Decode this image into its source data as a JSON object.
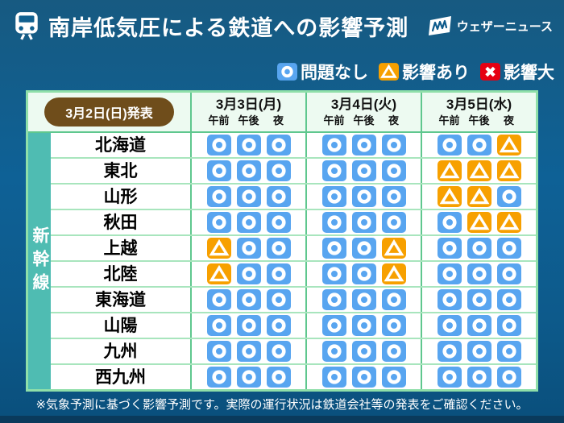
{
  "header": {
    "title": "南岸低気圧による鉄道への影響予測",
    "brand": "ウェザーニュース"
  },
  "legend": {
    "items": [
      {
        "type": "ok",
        "label": "問題なし"
      },
      {
        "type": "warn",
        "label": "影響あり"
      },
      {
        "type": "x",
        "label": "影響大"
      }
    ]
  },
  "colors": {
    "ok": "#58a5f0",
    "warn": "#f7a000",
    "x": "#e60012",
    "strip": "#4fbcb2",
    "pill": "#6f4d1b",
    "table_border": "#8fdfa9"
  },
  "table": {
    "announced": "3月2日(日)発表",
    "category_label": "新幹線",
    "columns": [
      {
        "date": "3月3日(月)",
        "periods": [
          "午前",
          "午後",
          "夜"
        ]
      },
      {
        "date": "3月4日(火)",
        "periods": [
          "午前",
          "午後",
          "夜"
        ]
      },
      {
        "date": "3月5日(水)",
        "periods": [
          "午前",
          "午後",
          "夜"
        ]
      }
    ]
  },
  "footer": {
    "note": "※気象予測に基づく影響予測です。実際の運行状況は鉄道会社等の発表をご確認ください。"
  },
  "chart_data": {
    "type": "table",
    "title": "南岸低気圧による鉄道への影響予測",
    "issued": "3月2日(日)発表",
    "legend": {
      "ok": "問題なし",
      "warn": "影響あり",
      "x": "影響大"
    },
    "columns": [
      "3月3日(月) 午前",
      "3月3日(月) 午後",
      "3月3日(月) 夜",
      "3月4日(火) 午前",
      "3月4日(火) 午後",
      "3月4日(火) 夜",
      "3月5日(水) 午前",
      "3月5日(水) 午後",
      "3月5日(水) 夜"
    ],
    "rows": [
      {
        "line": "北海道",
        "values": [
          "ok",
          "ok",
          "ok",
          "ok",
          "ok",
          "ok",
          "ok",
          "ok",
          "warn"
        ]
      },
      {
        "line": "東北",
        "values": [
          "ok",
          "ok",
          "ok",
          "ok",
          "ok",
          "ok",
          "warn",
          "warn",
          "warn"
        ]
      },
      {
        "line": "山形",
        "values": [
          "ok",
          "ok",
          "ok",
          "ok",
          "ok",
          "ok",
          "warn",
          "warn",
          "ok"
        ]
      },
      {
        "line": "秋田",
        "values": [
          "ok",
          "ok",
          "ok",
          "ok",
          "ok",
          "ok",
          "ok",
          "warn",
          "warn"
        ]
      },
      {
        "line": "上越",
        "values": [
          "warn",
          "ok",
          "ok",
          "ok",
          "ok",
          "warn",
          "ok",
          "ok",
          "ok"
        ]
      },
      {
        "line": "北陸",
        "values": [
          "warn",
          "ok",
          "ok",
          "ok",
          "ok",
          "warn",
          "ok",
          "ok",
          "ok"
        ]
      },
      {
        "line": "東海道",
        "values": [
          "ok",
          "ok",
          "ok",
          "ok",
          "ok",
          "ok",
          "ok",
          "ok",
          "ok"
        ]
      },
      {
        "line": "山陽",
        "values": [
          "ok",
          "ok",
          "ok",
          "ok",
          "ok",
          "ok",
          "ok",
          "ok",
          "ok"
        ]
      },
      {
        "line": "九州",
        "values": [
          "ok",
          "ok",
          "ok",
          "ok",
          "ok",
          "ok",
          "ok",
          "ok",
          "ok"
        ]
      },
      {
        "line": "西九州",
        "values": [
          "ok",
          "ok",
          "ok",
          "ok",
          "ok",
          "ok",
          "ok",
          "ok",
          "ok"
        ]
      }
    ]
  }
}
